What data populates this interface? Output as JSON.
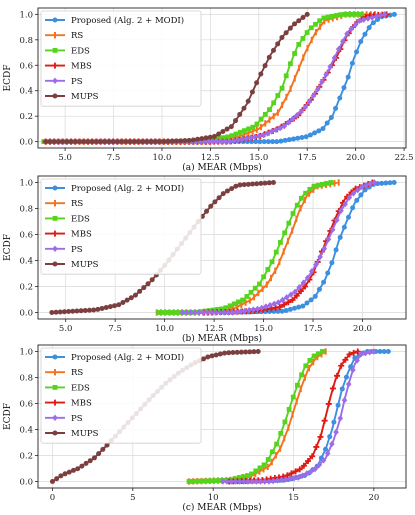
{
  "chart_data": [
    {
      "type": "line",
      "panel": "a",
      "xlabel": "(a) MEAR (Mbps)",
      "ylabel": "ECDF",
      "xlim": [
        3.6,
        22.6
      ],
      "ylim": [
        -0.05,
        1.05
      ],
      "xticks": [
        5.0,
        7.5,
        10.0,
        12.5,
        15.0,
        17.5,
        20.0,
        22.5
      ],
      "xtick_labels": [
        "5.0",
        "7.5",
        "10.0",
        "12.5",
        "15.0",
        "17.5",
        "20.0",
        "22.5"
      ],
      "yticks": [
        0.0,
        0.2,
        0.4,
        0.6,
        0.8,
        1.0
      ],
      "ytick_labels": [
        "0.0",
        "0.2",
        "0.4",
        "0.6",
        "0.8",
        "1.0"
      ],
      "grid": true,
      "legend_position": "top-left",
      "series": [
        {
          "name": "Proposed (Alg. 2 + MODI)",
          "points": [
            [
              4.0,
              0
            ],
            [
              6.7,
              0
            ],
            [
              16.0,
              0
            ],
            [
              17.5,
              0.04
            ],
            [
              18.3,
              0.1
            ],
            [
              18.8,
              0.2
            ],
            [
              19.2,
              0.35
            ],
            [
              19.6,
              0.5
            ],
            [
              19.9,
              0.65
            ],
            [
              20.3,
              0.8
            ],
            [
              20.8,
              0.92
            ],
            [
              21.3,
              0.98
            ],
            [
              22.0,
              1.0
            ]
          ]
        },
        {
          "name": "RS",
          "points": [
            [
              4.0,
              0
            ],
            [
              12.5,
              0
            ],
            [
              14.0,
              0.04
            ],
            [
              15.0,
              0.1
            ],
            [
              16.0,
              0.23
            ],
            [
              16.6,
              0.4
            ],
            [
              17.0,
              0.55
            ],
            [
              17.4,
              0.7
            ],
            [
              17.9,
              0.85
            ],
            [
              18.4,
              0.95
            ],
            [
              19.5,
              1.0
            ],
            [
              21.0,
              1.0
            ]
          ]
        },
        {
          "name": "EDS",
          "points": [
            [
              3.9,
              0
            ],
            [
              12.0,
              0
            ],
            [
              13.5,
              0.04
            ],
            [
              14.8,
              0.12
            ],
            [
              15.6,
              0.26
            ],
            [
              16.2,
              0.42
            ],
            [
              16.6,
              0.6
            ],
            [
              17.0,
              0.75
            ],
            [
              17.6,
              0.88
            ],
            [
              18.3,
              0.97
            ],
            [
              19.3,
              1.0
            ],
            [
              20.3,
              1.0
            ]
          ]
        },
        {
          "name": "MBS",
          "points": [
            [
              4.0,
              0
            ],
            [
              13.5,
              0
            ],
            [
              15.0,
              0.04
            ],
            [
              16.0,
              0.1
            ],
            [
              17.0,
              0.2
            ],
            [
              17.8,
              0.35
            ],
            [
              18.4,
              0.5
            ],
            [
              19.0,
              0.66
            ],
            [
              19.5,
              0.82
            ],
            [
              20.0,
              0.93
            ],
            [
              20.6,
              0.99
            ],
            [
              21.6,
              1.0
            ]
          ]
        },
        {
          "name": "PS",
          "points": [
            [
              4.0,
              0
            ],
            [
              13.5,
              0
            ],
            [
              15.2,
              0.05
            ],
            [
              16.3,
              0.12
            ],
            [
              17.3,
              0.25
            ],
            [
              18.0,
              0.4
            ],
            [
              18.6,
              0.56
            ],
            [
              19.1,
              0.72
            ],
            [
              19.6,
              0.86
            ],
            [
              20.2,
              0.95
            ],
            [
              21.5,
              1.0
            ]
          ]
        },
        {
          "name": "MUPS",
          "points": [
            [
              4.0,
              0
            ],
            [
              10.0,
              0
            ],
            [
              11.5,
              0.01
            ],
            [
              12.7,
              0.04
            ],
            [
              13.6,
              0.12
            ],
            [
              14.4,
              0.3
            ],
            [
              15.0,
              0.5
            ],
            [
              15.6,
              0.68
            ],
            [
              16.2,
              0.82
            ],
            [
              16.8,
              0.92
            ],
            [
              17.5,
              1.0
            ]
          ]
        }
      ]
    },
    {
      "type": "line",
      "panel": "b",
      "xlabel": "(b) MEAR (Mbps)",
      "ylabel": "ECDF",
      "xlim": [
        3.6,
        22.2
      ],
      "ylim": [
        -0.05,
        1.05
      ],
      "xticks": [
        5.0,
        7.5,
        10.0,
        12.5,
        15.0,
        17.5,
        20.0
      ],
      "xtick_labels": [
        "5.0",
        "7.5",
        "10.0",
        "12.5",
        "15.0",
        "17.5",
        "20.0"
      ],
      "yticks": [
        0.0,
        0.2,
        0.4,
        0.6,
        0.8,
        1.0
      ],
      "ytick_labels": [
        "0.0",
        "0.2",
        "0.4",
        "0.6",
        "0.8",
        "1.0"
      ],
      "grid": true,
      "legend_position": "top-left",
      "series": [
        {
          "name": "Proposed (Alg. 2 + MODI)",
          "points": [
            [
              13.0,
              0
            ],
            [
              16.0,
              0.01
            ],
            [
              17.0,
              0.05
            ],
            [
              17.6,
              0.12
            ],
            [
              18.1,
              0.25
            ],
            [
              18.5,
              0.4
            ],
            [
              18.8,
              0.55
            ],
            [
              19.2,
              0.7
            ],
            [
              19.6,
              0.84
            ],
            [
              20.1,
              0.94
            ],
            [
              20.6,
              0.99
            ],
            [
              21.6,
              1.0
            ]
          ]
        },
        {
          "name": "RS",
          "points": [
            [
              9.6,
              0
            ],
            [
              12.5,
              0
            ],
            [
              13.5,
              0.03
            ],
            [
              14.4,
              0.1
            ],
            [
              15.2,
              0.22
            ],
            [
              15.7,
              0.35
            ],
            [
              16.1,
              0.5
            ],
            [
              16.5,
              0.65
            ],
            [
              16.8,
              0.78
            ],
            [
              17.2,
              0.9
            ],
            [
              17.7,
              0.97
            ],
            [
              18.8,
              1.0
            ]
          ]
        },
        {
          "name": "EDS",
          "points": [
            [
              9.7,
              0
            ],
            [
              11.5,
              0
            ],
            [
              13.0,
              0.03
            ],
            [
              14.0,
              0.1
            ],
            [
              14.8,
              0.22
            ],
            [
              15.4,
              0.38
            ],
            [
              15.8,
              0.52
            ],
            [
              16.2,
              0.66
            ],
            [
              16.6,
              0.8
            ],
            [
              17.0,
              0.9
            ],
            [
              17.5,
              0.97
            ],
            [
              18.4,
              1.0
            ]
          ]
        },
        {
          "name": "MBS",
          "points": [
            [
              12.0,
              0
            ],
            [
              14.5,
              0.01
            ],
            [
              15.8,
              0.04
            ],
            [
              16.5,
              0.1
            ],
            [
              17.1,
              0.2
            ],
            [
              17.5,
              0.3
            ],
            [
              17.9,
              0.45
            ],
            [
              18.3,
              0.6
            ],
            [
              18.7,
              0.75
            ],
            [
              19.1,
              0.87
            ],
            [
              19.6,
              0.95
            ],
            [
              20.5,
              1.0
            ]
          ]
        },
        {
          "name": "PS",
          "points": [
            [
              10.9,
              0
            ],
            [
              13.5,
              0
            ],
            [
              14.8,
              0.03
            ],
            [
              15.8,
              0.08
            ],
            [
              16.6,
              0.16
            ],
            [
              17.2,
              0.26
            ],
            [
              17.7,
              0.38
            ],
            [
              18.1,
              0.5
            ],
            [
              18.5,
              0.64
            ],
            [
              18.9,
              0.78
            ],
            [
              19.4,
              0.9
            ],
            [
              20.0,
              0.97
            ],
            [
              20.6,
              1.0
            ]
          ]
        },
        {
          "name": "MUPS",
          "points": [
            [
              4.3,
              0
            ],
            [
              6.5,
              0.02
            ],
            [
              7.7,
              0.06
            ],
            [
              8.5,
              0.13
            ],
            [
              9.3,
              0.24
            ],
            [
              10.0,
              0.36
            ],
            [
              10.6,
              0.48
            ],
            [
              11.2,
              0.6
            ],
            [
              11.8,
              0.72
            ],
            [
              12.4,
              0.83
            ],
            [
              13.0,
              0.92
            ],
            [
              13.7,
              0.98
            ],
            [
              15.5,
              1.0
            ]
          ]
        }
      ]
    },
    {
      "type": "line",
      "panel": "c",
      "xlabel": "(c) MEAR (Mbps)",
      "ylabel": "ECDF",
      "xlim": [
        -0.9,
        22.0
      ],
      "ylim": [
        -0.05,
        1.05
      ],
      "xticks": [
        0,
        5,
        10,
        15,
        20
      ],
      "xtick_labels": [
        "0",
        "5",
        "10",
        "15",
        "20"
      ],
      "yticks": [
        0.0,
        0.2,
        0.4,
        0.6,
        0.8,
        1.0
      ],
      "ytick_labels": [
        "0.0",
        "0.2",
        "0.4",
        "0.6",
        "0.8",
        "1.0"
      ],
      "grid": true,
      "legend_position": "top-left",
      "series": [
        {
          "name": "Proposed (Alg. 2 + MODI)",
          "points": [
            [
              11.0,
              0
            ],
            [
              14.5,
              0.01
            ],
            [
              15.8,
              0.05
            ],
            [
              16.5,
              0.12
            ],
            [
              17.0,
              0.25
            ],
            [
              17.4,
              0.4
            ],
            [
              17.7,
              0.55
            ],
            [
              18.0,
              0.7
            ],
            [
              18.4,
              0.84
            ],
            [
              18.8,
              0.95
            ],
            [
              19.5,
              1.0
            ],
            [
              20.9,
              1.0
            ]
          ]
        },
        {
          "name": "RS",
          "points": [
            [
              8.5,
              0
            ],
            [
              11.0,
              0.01
            ],
            [
              12.5,
              0.05
            ],
            [
              13.5,
              0.12
            ],
            [
              14.2,
              0.26
            ],
            [
              14.7,
              0.42
            ],
            [
              15.1,
              0.58
            ],
            [
              15.5,
              0.73
            ],
            [
              15.9,
              0.86
            ],
            [
              16.4,
              0.95
            ],
            [
              17.0,
              1.0
            ]
          ]
        },
        {
          "name": "EDS",
          "points": [
            [
              8.5,
              0
            ],
            [
              11.0,
              0.01
            ],
            [
              12.3,
              0.05
            ],
            [
              13.3,
              0.14
            ],
            [
              14.0,
              0.3
            ],
            [
              14.5,
              0.47
            ],
            [
              14.9,
              0.62
            ],
            [
              15.3,
              0.76
            ],
            [
              15.7,
              0.88
            ],
            [
              16.2,
              0.96
            ],
            [
              16.8,
              1.0
            ]
          ]
        },
        {
          "name": "MBS",
          "points": [
            [
              11.0,
              0
            ],
            [
              13.0,
              0.01
            ],
            [
              14.5,
              0.04
            ],
            [
              15.5,
              0.1
            ],
            [
              16.2,
              0.2
            ],
            [
              16.7,
              0.35
            ],
            [
              17.0,
              0.5
            ],
            [
              17.3,
              0.65
            ],
            [
              17.6,
              0.78
            ],
            [
              18.0,
              0.9
            ],
            [
              18.5,
              0.98
            ],
            [
              19.0,
              1.0
            ]
          ]
        },
        {
          "name": "PS",
          "points": [
            [
              10.6,
              0
            ],
            [
              13.5,
              0
            ],
            [
              15.3,
              0.03
            ],
            [
              16.3,
              0.09
            ],
            [
              17.0,
              0.18
            ],
            [
              17.5,
              0.32
            ],
            [
              17.9,
              0.48
            ],
            [
              18.2,
              0.64
            ],
            [
              18.5,
              0.78
            ],
            [
              18.8,
              0.9
            ],
            [
              19.2,
              0.98
            ],
            [
              20.0,
              1.0
            ]
          ]
        },
        {
          "name": "MUPS",
          "points": [
            [
              0.0,
              0
            ],
            [
              0.6,
              0.05
            ],
            [
              1.6,
              0.1
            ],
            [
              2.6,
              0.18
            ],
            [
              3.4,
              0.28
            ],
            [
              4.3,
              0.4
            ],
            [
              5.2,
              0.52
            ],
            [
              6.1,
              0.64
            ],
            [
              7.0,
              0.75
            ],
            [
              7.9,
              0.84
            ],
            [
              8.8,
              0.91
            ],
            [
              9.7,
              0.96
            ],
            [
              10.8,
              0.99
            ],
            [
              12.8,
              1.0
            ]
          ]
        }
      ]
    }
  ],
  "colors": {
    "Proposed (Alg. 2 + MODI)": "#3d8fe0",
    "RS": "#f5731c",
    "EDS": "#55d41c",
    "MBS": "#de1a12",
    "PS": "#9d6ce8",
    "MUPS": "#7b3f3f"
  },
  "markers": {
    "Proposed (Alg. 2 + MODI)": "circle",
    "RS": "vbar",
    "EDS": "square",
    "MBS": "plus",
    "PS": "diamond",
    "MUPS": "circle"
  }
}
